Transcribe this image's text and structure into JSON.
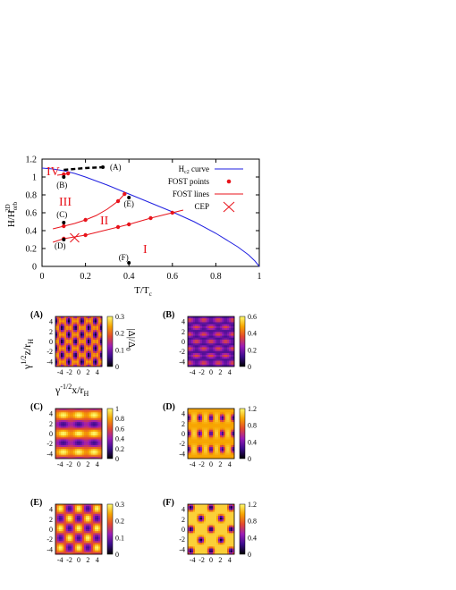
{
  "chart_data": {
    "type": "line",
    "xlabel": "T/T",
    "xlabel_sub": "c",
    "ylabel": "H/H",
    "ylabel_sup": "2D",
    "ylabel_sub": "orb",
    "xlim": [
      0,
      1
    ],
    "ylim": [
      0,
      1.2
    ],
    "xticks": [
      "0",
      "0.2",
      "0.4",
      "0.6",
      "0.8",
      "1"
    ],
    "yticks": [
      "0",
      "0.2",
      "0.4",
      "0.6",
      "0.8",
      "1",
      "1.2"
    ],
    "legend": {
      "placement": "top-right",
      "entries": [
        "H   curve",
        "FOST points",
        "FOST lines",
        "CEP"
      ],
      "hc2_sub": "c2"
    },
    "series": [
      {
        "name": "Hc2 curve",
        "color": "#1f1fe0",
        "x": [
          0.0,
          0.05,
          0.1,
          0.15,
          0.2,
          0.3,
          0.4,
          0.5,
          0.6,
          0.7,
          0.8,
          0.9,
          0.95,
          0.98,
          1.0
        ],
        "y": [
          1.1,
          1.09,
          1.07,
          1.04,
          1.0,
          0.91,
          0.81,
          0.71,
          0.61,
          0.5,
          0.37,
          0.22,
          0.13,
          0.06,
          0.0
        ]
      },
      {
        "name": "FOST points",
        "color": "#e8131b",
        "x": [
          0.1,
          0.12,
          0.1,
          0.2,
          0.35,
          0.38,
          0.1,
          0.2,
          0.35,
          0.4,
          0.5,
          0.6
        ],
        "y": [
          1.03,
          1.04,
          0.45,
          0.52,
          0.73,
          0.81,
          0.31,
          0.35,
          0.44,
          0.47,
          0.54,
          0.6
        ]
      },
      {
        "name": "FOST line upper",
        "color": "#e8131b",
        "x": [
          0.05,
          0.1,
          0.15,
          0.2,
          0.25,
          0.3,
          0.35,
          0.38
        ],
        "y": [
          0.42,
          0.45,
          0.48,
          0.52,
          0.57,
          0.64,
          0.73,
          0.81
        ]
      },
      {
        "name": "FOST line lower",
        "color": "#e8131b",
        "x": [
          0.05,
          0.1,
          0.15,
          0.2,
          0.3,
          0.4,
          0.5,
          0.6,
          0.65
        ],
        "y": [
          0.27,
          0.31,
          0.33,
          0.35,
          0.41,
          0.47,
          0.54,
          0.6,
          0.63
        ]
      },
      {
        "name": "FOST line top",
        "color": "#e8131b",
        "x": [
          0.07,
          0.1,
          0.12
        ],
        "y": [
          1.02,
          1.03,
          1.04
        ]
      }
    ],
    "boundary_dashed": {
      "x": [
        0.1,
        0.2,
        0.28
      ],
      "y": [
        1.08,
        1.1,
        1.11
      ]
    },
    "cep": {
      "x": 0.15,
      "y": 0.32
    },
    "state_points": [
      {
        "label": "(A)",
        "x": 0.28,
        "y": 1.11
      },
      {
        "label": "(B)",
        "x": 0.1,
        "y": 1.0
      },
      {
        "label": "(C)",
        "x": 0.1,
        "y": 0.49
      },
      {
        "label": "(D)",
        "x": 0.1,
        "y": 0.3
      },
      {
        "label": "(E)",
        "x": 0.4,
        "y": 0.77
      },
      {
        "label": "(F)",
        "x": 0.4,
        "y": 0.04
      }
    ],
    "regions": [
      "IV",
      "III",
      "II",
      "I"
    ]
  },
  "panels": [
    {
      "label": "(A)",
      "cbar_ticks": [
        "0.3",
        "0.2",
        "0.1",
        "0"
      ],
      "cbar_max": 0.3
    },
    {
      "label": "(B)",
      "cbar_ticks": [
        "0.6",
        "0.4",
        "0.2",
        "0"
      ],
      "cbar_max": 0.6
    },
    {
      "label": "(C)",
      "cbar_ticks": [
        "1",
        "0.8",
        "0.6",
        "0.4",
        "0.2",
        "0"
      ],
      "cbar_max": 1.0
    },
    {
      "label": "(D)",
      "cbar_ticks": [
        "1.2",
        "0.8",
        "0.4",
        "0"
      ],
      "cbar_max": 1.2
    },
    {
      "label": "(E)",
      "cbar_ticks": [
        "0.3",
        "0.2",
        "0.1",
        "0"
      ],
      "cbar_max": 0.3
    },
    {
      "label": "(F)",
      "cbar_ticks": [
        "1.2",
        "0.8",
        "0.4",
        "0"
      ],
      "cbar_max": 1.2
    }
  ],
  "panel_axes": {
    "xticks": [
      "-4",
      "-2",
      "0",
      "2",
      "4"
    ],
    "yticks": [
      "4",
      "2",
      "0",
      "-2",
      "-4"
    ],
    "ylabel": "γ",
    "ylabel_sup": "1/2",
    "ylabel_rest": "z/r",
    "ylabel_sub": "H",
    "xlabel": "γ",
    "xlabel_sup": "-1/2",
    "xlabel_rest": "x/r",
    "xlabel_sub": "H",
    "cbar_label": "|Δ|/Δ",
    "cbar_label_sub": "0"
  },
  "colors": {
    "hc2": "#1f1fe0",
    "fost": "#e8131b",
    "region_text": "#e8131b"
  }
}
